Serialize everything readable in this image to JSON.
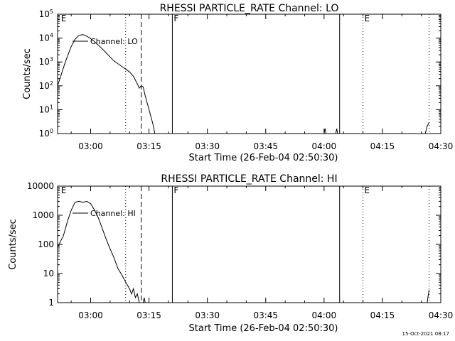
{
  "footer": {
    "timestamp": "15-Oct-2021 08:17"
  },
  "chart_data": [
    {
      "type": "line",
      "title": "RHESSI PARTICLE_RATE Channel: LO",
      "xlabel": "Start Time (26-Feb-04 02:50:30)",
      "ylabel": "Counts/sec",
      "y_scale": "log",
      "xlim": [
        "02:51:30",
        "04:30:00"
      ],
      "ylim": [
        1,
        100000
      ],
      "x_ticks": [
        "03:00",
        "03:15",
        "03:30",
        "03:45",
        "04:00",
        "04:15",
        "04:30"
      ],
      "y_ticks": [
        {
          "value": 1,
          "base": "10",
          "exp": "0"
        },
        {
          "value": 10,
          "base": "10",
          "exp": "1"
        },
        {
          "value": 100,
          "base": "10",
          "exp": "2"
        },
        {
          "value": 1000,
          "base": "10",
          "exp": "3"
        },
        {
          "value": 10000,
          "base": "10",
          "exp": "4"
        },
        {
          "value": 100000,
          "base": "10",
          "exp": "5"
        }
      ],
      "legend": "Channel: LO",
      "markers": [
        {
          "time": "02:52:00",
          "letter": "E",
          "style": "none"
        },
        {
          "time": "03:09:00",
          "style": "dotted"
        },
        {
          "time": "03:13:00",
          "style": "dashed"
        },
        {
          "time": "03:21:00",
          "letter": "F",
          "style": "solid"
        },
        {
          "time": "04:04:00",
          "style": "solid"
        },
        {
          "time": "04:10:00",
          "letter": "E",
          "style": "dotted"
        },
        {
          "time": "04:27:00",
          "style": "dotted"
        }
      ],
      "series": [
        {
          "name": "Channel: LO",
          "segments": [
            [
              [
                "02:51:30",
                100
              ],
              [
                "02:53:30",
                1000
              ],
              [
                "02:55:00",
                4500
              ],
              [
                "02:56:00",
                9000
              ],
              [
                "02:57:00",
                13000
              ],
              [
                "02:58:00",
                14000
              ],
              [
                "02:59:00",
                12000
              ],
              [
                "03:00:00",
                9500
              ],
              [
                "03:01:00",
                7000
              ],
              [
                "03:02:00",
                5000
              ],
              [
                "03:03:00",
                3500
              ],
              [
                "03:04:00",
                2400
              ],
              [
                "03:05:00",
                1600
              ],
              [
                "03:06:00",
                1100
              ],
              [
                "03:07:00",
                850
              ],
              [
                "03:08:00",
                650
              ],
              [
                "03:09:00",
                500
              ],
              [
                "03:10:00",
                380
              ],
              [
                "03:11:00",
                250
              ],
              [
                "03:12:00",
                120
              ],
              [
                "03:12:30",
                80
              ],
              [
                "03:13:00",
                100
              ],
              [
                "03:13:30",
                90
              ],
              [
                "03:14:00",
                40
              ],
              [
                "03:15:00",
                10
              ],
              [
                "03:16:00",
                2.5
              ],
              [
                "03:16:30",
                1
              ]
            ],
            [
              [
                "04:00:00",
                1
              ],
              [
                "04:00:15",
                1.6
              ],
              [
                "04:00:30",
                1
              ]
            ],
            [
              [
                "04:03:00",
                1
              ],
              [
                "04:03:15",
                1.6
              ],
              [
                "04:03:30",
                1
              ]
            ],
            [
              [
                "04:26:00",
                1
              ],
              [
                "04:26:30",
                2
              ],
              [
                "04:27:00",
                3
              ]
            ]
          ]
        }
      ]
    },
    {
      "type": "line",
      "title": "RHESSI PARTICLE_RATE Channel: HI",
      "xlabel": "Start Time (26-Feb-04 02:50:30)",
      "ylabel": "Counts/sec",
      "y_scale": "log",
      "xlim": [
        "02:51:30",
        "04:30:00"
      ],
      "ylim": [
        1,
        10000
      ],
      "x_ticks": [
        "03:00",
        "03:15",
        "03:30",
        "03:45",
        "04:00",
        "04:15",
        "04:30"
      ],
      "y_ticks": [
        {
          "value": 1,
          "label": "1"
        },
        {
          "value": 10,
          "label": "10"
        },
        {
          "value": 100,
          "label": "100"
        },
        {
          "value": 1000,
          "label": "1000"
        },
        {
          "value": 10000,
          "label": "10000"
        }
      ],
      "legend": "Channel: HI",
      "markers": [
        {
          "time": "02:52:00",
          "letter": "E",
          "style": "none"
        },
        {
          "time": "03:09:00",
          "style": "dotted"
        },
        {
          "time": "03:13:00",
          "style": "dashed"
        },
        {
          "time": "03:21:00",
          "letter": "F",
          "style": "solid"
        },
        {
          "time": "04:04:00",
          "style": "solid"
        },
        {
          "time": "04:10:00",
          "letter": "E",
          "style": "dotted"
        },
        {
          "time": "04:27:00",
          "style": "dotted"
        }
      ],
      "series": [
        {
          "name": "Channel: HI",
          "segments": [
            [
              [
                "02:51:30",
                80
              ],
              [
                "02:53:00",
                200
              ],
              [
                "02:54:00",
                600
              ],
              [
                "02:55:00",
                1500
              ],
              [
                "02:56:00",
                2800
              ],
              [
                "02:57:00",
                3000
              ],
              [
                "02:58:00",
                2800
              ],
              [
                "02:59:00",
                3000
              ],
              [
                "03:00:00",
                2500
              ],
              [
                "03:01:00",
                1500
              ],
              [
                "03:02:00",
                800
              ],
              [
                "03:03:00",
                350
              ],
              [
                "03:04:00",
                150
              ],
              [
                "03:05:00",
                70
              ],
              [
                "03:06:00",
                35
              ],
              [
                "03:07:00",
                15
              ],
              [
                "03:08:00",
                9
              ],
              [
                "03:09:00",
                5
              ],
              [
                "03:10:00",
                3
              ],
              [
                "03:10:30",
                2
              ],
              [
                "03:11:00",
                3
              ],
              [
                "03:11:30",
                1.5
              ],
              [
                "03:12:00",
                2
              ],
              [
                "03:12:30",
                1
              ]
            ],
            [
              [
                "03:13:30",
                1
              ],
              [
                "03:13:45",
                1.5
              ],
              [
                "03:14:00",
                1
              ]
            ],
            [
              [
                "04:26:30",
                1
              ],
              [
                "04:27:00",
                2.8
              ]
            ]
          ]
        }
      ]
    }
  ]
}
